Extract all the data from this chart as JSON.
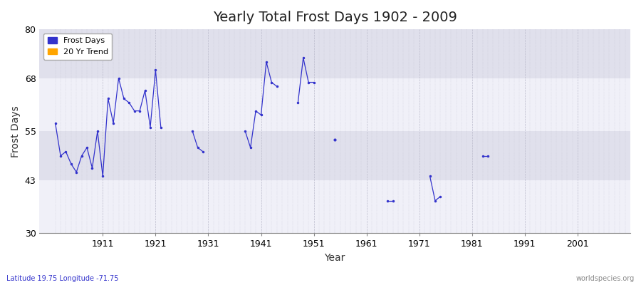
{
  "title": "Yearly Total Frost Days 1902 - 2009",
  "xlabel": "Year",
  "ylabel": "Frost Days",
  "subtitle": "Latitude 19.75 Longitude -71.75",
  "watermark": "worldspecies.org",
  "ylim": [
    30,
    80
  ],
  "xlim": [
    1899,
    2011
  ],
  "yticks": [
    30,
    43,
    55,
    68,
    80
  ],
  "xticks": [
    1911,
    1921,
    1931,
    1941,
    1951,
    1961,
    1971,
    1981,
    1991,
    2001
  ],
  "xtick_labels": [
    "1911",
    "1921",
    "1931",
    "1941",
    "1951",
    "1961",
    "1971",
    "1981",
    "1991",
    "2001"
  ],
  "line_color": "#3333cc",
  "bg_color": "#f0f0f8",
  "plot_bg_light": "#e8e8f0",
  "plot_bg_dark": "#d8d8e8",
  "grid_color": "#bbbbcc",
  "band_colors": [
    "#f0f0f8",
    "#e0e0ec"
  ],
  "data_years": [
    1902,
    1903,
    1904,
    1905,
    1906,
    1907,
    1908,
    1909,
    1910,
    1911,
    1912,
    1913,
    1914,
    1915,
    1916,
    1917,
    1918,
    1919,
    1920,
    1921,
    1922,
    1928,
    1929,
    1930,
    1938,
    1939,
    1940,
    1941,
    1942,
    1943,
    1944,
    1948,
    1949,
    1950,
    1951,
    1955,
    1965,
    1966,
    1973,
    1974,
    1975,
    1983,
    1984
  ],
  "data_values": [
    57,
    49,
    50,
    47,
    45,
    49,
    51,
    46,
    55,
    44,
    63,
    57,
    68,
    63,
    62,
    60,
    60,
    65,
    56,
    70,
    56,
    55,
    51,
    50,
    55,
    51,
    60,
    59,
    72,
    67,
    66,
    62,
    73,
    67,
    67,
    53,
    38,
    38,
    44,
    38,
    39,
    49,
    49
  ],
  "connected_segments": [
    [
      1902,
      1903,
      1904,
      1905,
      1906,
      1907,
      1908,
      1909,
      1910,
      1911,
      1912,
      1913,
      1914,
      1915,
      1916,
      1917,
      1918,
      1919,
      1920,
      1921,
      1922
    ],
    [
      1928,
      1929,
      1930
    ],
    [
      1938,
      1939,
      1940,
      1941,
      1942,
      1943,
      1944
    ],
    [
      1948,
      1949,
      1950,
      1951
    ],
    [
      1955
    ],
    [
      1965,
      1966
    ],
    [
      1973,
      1974,
      1975
    ],
    [
      1983,
      1984
    ]
  ]
}
